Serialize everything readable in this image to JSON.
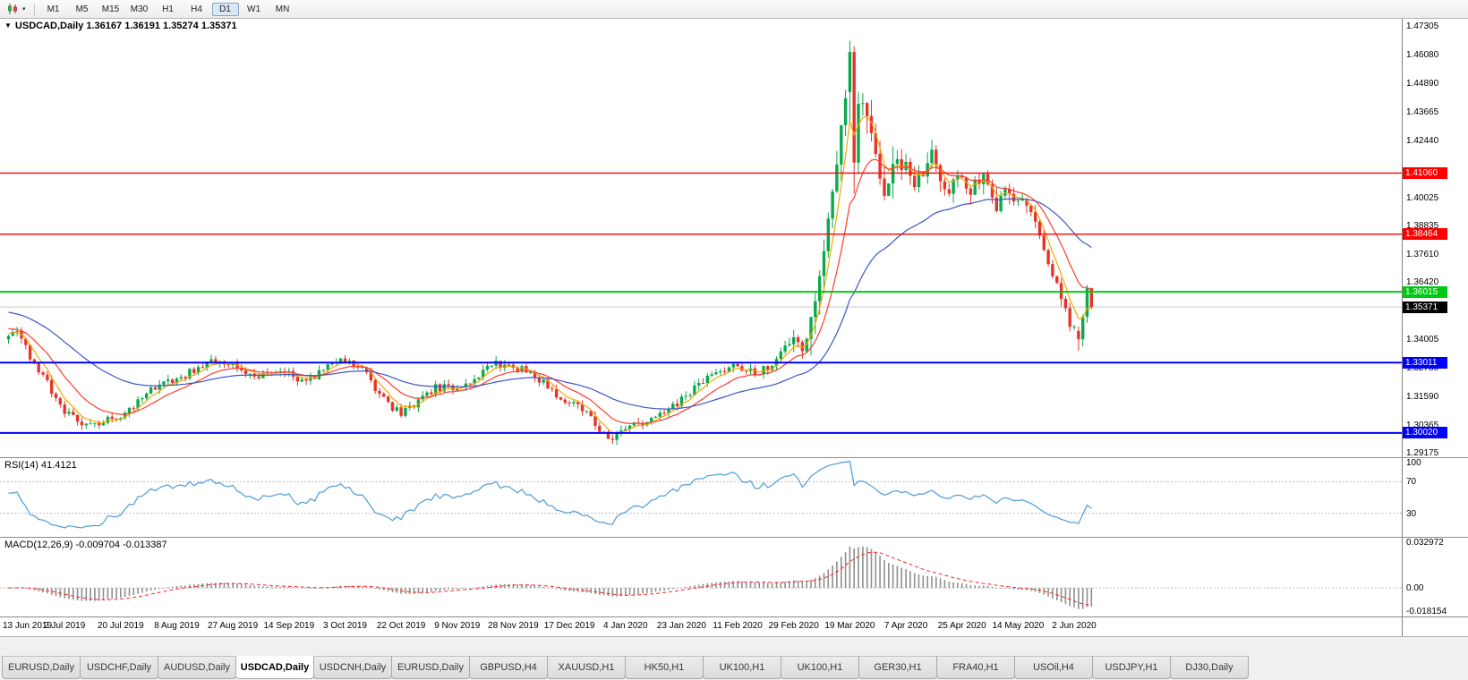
{
  "toolbar": {
    "chart_type_icon": "candlestick-chart",
    "dropdown_glyph": "▾",
    "timeframes": [
      "M1",
      "M5",
      "M15",
      "M30",
      "H1",
      "H4",
      "D1",
      "W1",
      "MN"
    ],
    "active_timeframe": "D1"
  },
  "chart": {
    "title_marker": "▼",
    "title": "USDCAD,Daily 1.36167 1.36191 1.35274 1.35371",
    "symbol": "USDCAD",
    "period": "Daily",
    "ohlc": {
      "open": "1.36167",
      "high": "1.36191",
      "low": "1.35274",
      "close": "1.35371"
    },
    "price_axis_ticks": [
      "1.47305",
      "1.46080",
      "1.44890",
      "1.43665",
      "1.42440",
      "1.40025",
      "1.38835",
      "1.37610",
      "1.36420",
      "1.34005",
      "1.32780",
      "1.31590",
      "1.30365",
      "1.29175"
    ],
    "levels": [
      {
        "label": "1.41060",
        "price": 1.4106,
        "color": "#FF0000",
        "width": 1.4,
        "type": "resistance"
      },
      {
        "label": "1.38464",
        "price": 1.38464,
        "color": "#FF0000",
        "width": 1.4,
        "type": "resistance"
      },
      {
        "label": "1.36015",
        "price": 1.36015,
        "color": "#00C814",
        "width": 2,
        "type": "pivot"
      },
      {
        "label": "1.33011",
        "price": 1.33011,
        "color": "#0000FF",
        "width": 2,
        "type": "support"
      },
      {
        "label": "1.30020",
        "price": 1.3002,
        "color": "#0000FF",
        "width": 2,
        "type": "support"
      }
    ],
    "current_price": {
      "label": "1.35371",
      "price": 1.35371,
      "badge_color": "#000000"
    }
  },
  "rsi": {
    "label": "RSI(14) 41.4121",
    "value": 41.4121,
    "axis": [
      "100",
      "70",
      "30"
    ],
    "levels": [
      70,
      30
    ],
    "line_color": "#4F9BD5"
  },
  "macd": {
    "label": "MACD(12,26,9) -0.009704 -0.013387",
    "macd_value": -0.009704,
    "signal_value": -0.013387,
    "axis": [
      "0.032972",
      "0.00",
      "-0.018154"
    ]
  },
  "date_axis": [
    "13 Jun 2019",
    "2 Jul 2019",
    "20 Jul 2019",
    "8 Aug 2019",
    "27 Aug 2019",
    "14 Sep 2019",
    "3 Oct 2019",
    "22 Oct 2019",
    "9 Nov 2019",
    "28 Nov 2019",
    "17 Dec 2019",
    "4 Jan 2020",
    "23 Jan 2020",
    "11 Feb 2020",
    "29 Feb 2020",
    "19 Mar 2020",
    "7 Apr 2020",
    "25 Apr 2020",
    "14 May 2020",
    "2 Jun 2020"
  ],
  "tabs": {
    "items": [
      "EURUSD,Daily",
      "USDCHF,Daily",
      "AUDUSD,Daily",
      "USDCAD,Daily",
      "USDCNH,Daily",
      "EURUSD,Daily",
      "GBPUSD,H4",
      "XAUUSD,H1",
      "HK50,H1",
      "UK100,H1",
      "UK100,H1",
      "GER30,H1",
      "FRA40,H1",
      "USOil,H4",
      "USDJPY,H1",
      "DJ30,Daily"
    ],
    "active_index": 3
  },
  "colors": {
    "up_candle": "#0BA94C",
    "down_candle": "#E5352B",
    "current_price_line": "#C8C8C8",
    "rsi_line": "#4F9BD5",
    "macd_histogram": "#8F8F8F",
    "macd_signal": "#FF2222",
    "panel_border": "#8C8C8C"
  },
  "chart_data": {
    "type": "candlestick",
    "title": "USDCAD,Daily",
    "symbol": "USDCAD",
    "timeframe": "Daily",
    "candle_count": 252,
    "candles_per_label": 13,
    "x_labels": [
      "13 Jun 2019",
      "2 Jul 2019",
      "20 Jul 2019",
      "8 Aug 2019",
      "27 Aug 2019",
      "14 Sep 2019",
      "3 Oct 2019",
      "22 Oct 2019",
      "9 Nov 2019",
      "28 Nov 2019",
      "17 Dec 2019",
      "4 Jan 2020",
      "23 Jan 2020",
      "11 Feb 2020",
      "29 Feb 2020",
      "19 Mar 2020",
      "7 Apr 2020",
      "25 Apr 2020",
      "14 May 2020",
      "2 Jun 2020"
    ],
    "y_range": [
      1.2899,
      1.4761
    ],
    "grid": false,
    "legend": false,
    "price_path_waypoints": [
      [
        0,
        1.34
      ],
      [
        2,
        1.345
      ],
      [
        5,
        1.333
      ],
      [
        8,
        1.324
      ],
      [
        13,
        1.309
      ],
      [
        18,
        1.304
      ],
      [
        23,
        1.306
      ],
      [
        26,
        1.307
      ],
      [
        30,
        1.313
      ],
      [
        35,
        1.321
      ],
      [
        39,
        1.323
      ],
      [
        43,
        1.327
      ],
      [
        47,
        1.331
      ],
      [
        52,
        1.329
      ],
      [
        57,
        1.323
      ],
      [
        61,
        1.326
      ],
      [
        65,
        1.325
      ],
      [
        69,
        1.322
      ],
      [
        74,
        1.329
      ],
      [
        78,
        1.332
      ],
      [
        82,
        1.327
      ],
      [
        86,
        1.316
      ],
      [
        91,
        1.308
      ],
      [
        95,
        1.313
      ],
      [
        99,
        1.32
      ],
      [
        104,
        1.318
      ],
      [
        109,
        1.325
      ],
      [
        113,
        1.33
      ],
      [
        117,
        1.328
      ],
      [
        121,
        1.326
      ],
      [
        126,
        1.318
      ],
      [
        130,
        1.313
      ],
      [
        134,
        1.309
      ],
      [
        139,
        1.298
      ],
      [
        143,
        1.301
      ],
      [
        148,
        1.306
      ],
      [
        152,
        1.31
      ],
      [
        156,
        1.314
      ],
      [
        161,
        1.322
      ],
      [
        165,
        1.326
      ],
      [
        169,
        1.329
      ],
      [
        173,
        1.325
      ],
      [
        177,
        1.329
      ],
      [
        181,
        1.339
      ],
      [
        184,
        1.337
      ],
      [
        186,
        1.343
      ],
      [
        188,
        1.362
      ],
      [
        190,
        1.39
      ],
      [
        192,
        1.418
      ],
      [
        194,
        1.448
      ],
      [
        195,
        1.462
      ],
      [
        196,
        1.45
      ],
      [
        197,
        1.44
      ],
      [
        199,
        1.433
      ],
      [
        201,
        1.416
      ],
      [
        203,
        1.4
      ],
      [
        205,
        1.412
      ],
      [
        208,
        1.417
      ],
      [
        210,
        1.404
      ],
      [
        212,
        1.409
      ],
      [
        214,
        1.418
      ],
      [
        216,
        1.41
      ],
      [
        218,
        1.404
      ],
      [
        221,
        1.409
      ],
      [
        223,
        1.401
      ],
      [
        225,
        1.409
      ],
      [
        227,
        1.404
      ],
      [
        229,
        1.396
      ],
      [
        231,
        1.401
      ],
      [
        234,
        1.4
      ],
      [
        237,
        1.392
      ],
      [
        240,
        1.38
      ],
      [
        242,
        1.369
      ],
      [
        244,
        1.358
      ],
      [
        246,
        1.347
      ],
      [
        248,
        1.34
      ],
      [
        249,
        1.345
      ],
      [
        250,
        1.356
      ],
      [
        251,
        1.3537
      ]
    ],
    "forced_candles": {
      "195": [
        1.445,
        1.4668,
        1.432,
        1.462
      ],
      "196": [
        1.462,
        1.4645,
        1.402,
        1.415
      ],
      "197": [
        1.415,
        1.445,
        1.41,
        1.44
      ],
      "248": [
        1.3435,
        1.3455,
        1.335,
        1.34
      ],
      "249": [
        1.34,
        1.3505,
        1.337,
        1.3495
      ],
      "250": [
        1.3495,
        1.363,
        1.347,
        1.36167
      ],
      "251": [
        1.36167,
        1.36191,
        1.35274,
        1.35371
      ]
    },
    "last_candle": {
      "open": 1.36167,
      "high": 1.36191,
      "low": 1.35274,
      "close": 1.35371
    },
    "peak_high": 1.4668,
    "moving_averages": [
      {
        "period": 5,
        "type": "ema",
        "color": "#F2A900",
        "seed": 1.343
      },
      {
        "period": 13,
        "type": "ema",
        "color": "#FF3B30",
        "seed": 1.345
      },
      {
        "period": 40,
        "type": "ema",
        "color": "#3C55C8",
        "seed": 1.352
      }
    ],
    "rsi": {
      "period": 14,
      "range": [
        0,
        100
      ],
      "levels": [
        70,
        30
      ],
      "last": 41.4121
    },
    "macd": {
      "fast": 12,
      "slow": 26,
      "signal": 9,
      "y_range": [
        -0.0205,
        0.036
      ],
      "last_macd": -0.009704,
      "last_signal": -0.013387
    }
  }
}
